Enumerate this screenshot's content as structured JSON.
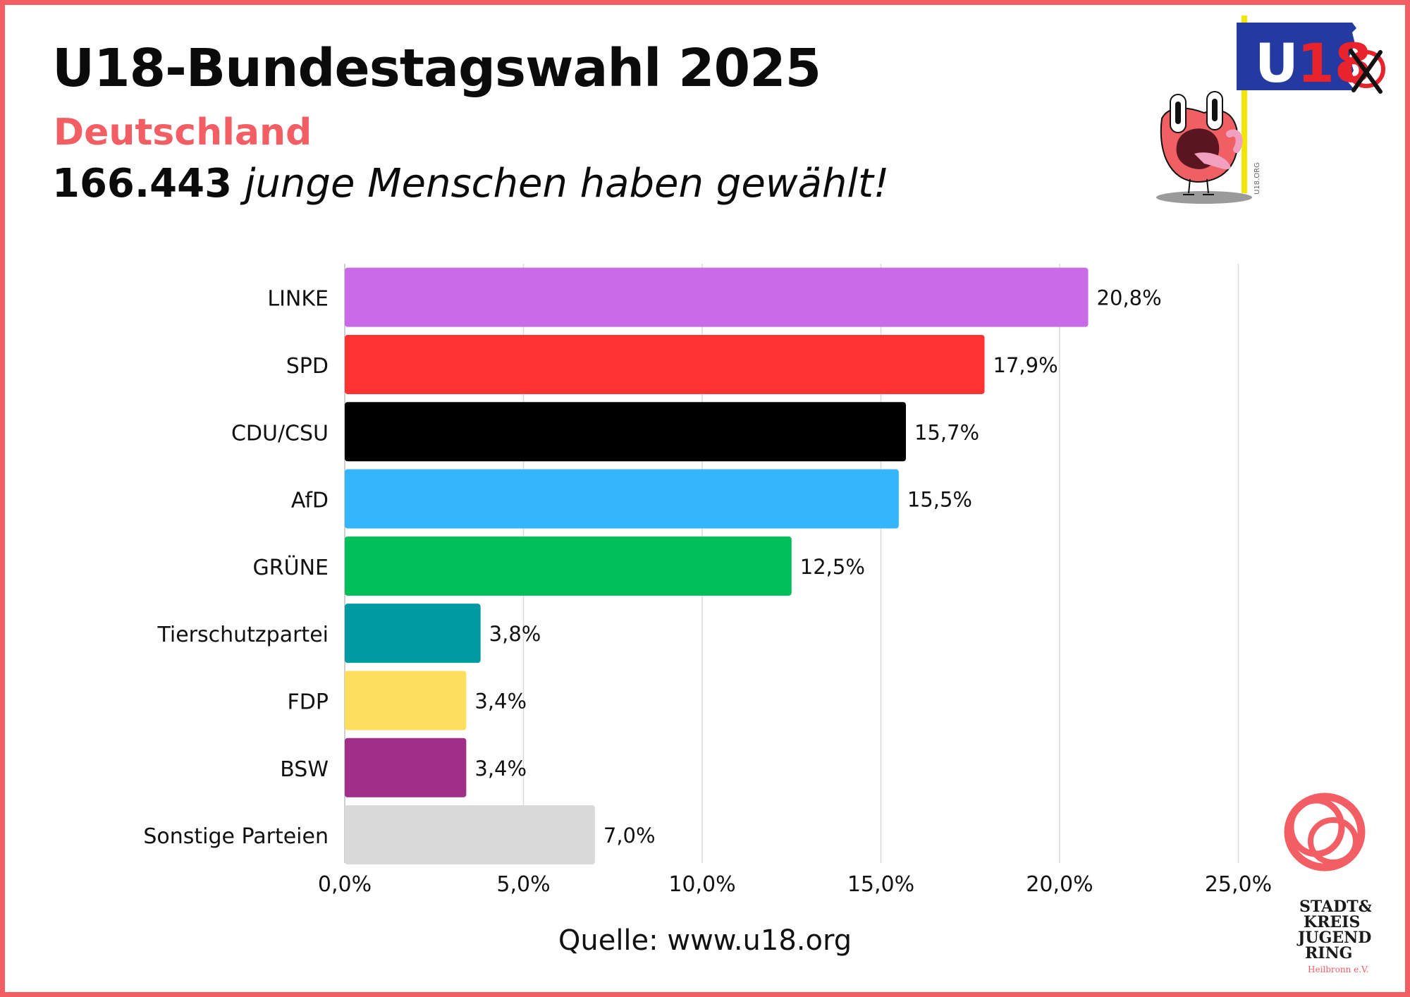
{
  "header": {
    "title": "U18-Bundestagswahl 2025",
    "subtitle": "Deutschland",
    "voters_count": "166.443",
    "voters_text": "junge Menschen haben gewählt!"
  },
  "footer": {
    "source": "Quelle: www.u18.org"
  },
  "logos": {
    "u18_flag_text": "U18",
    "u18_url": "U18.ORG",
    "org_lines": [
      "STADT&",
      "KREIS",
      "JUGEND",
      "RING",
      "Heilbronn e.V."
    ]
  },
  "colors": {
    "frame": "#f25e63",
    "accent": "#f25e63",
    "grid": "#d9d9d9",
    "text": "#111111"
  },
  "chart_data": {
    "type": "bar",
    "orientation": "horizontal",
    "categories": [
      "LINKE",
      "SPD",
      "CDU/CSU",
      "AfD",
      "GRÜNE",
      "Tierschutzpartei",
      "FDP",
      "BSW",
      "Sonstige Parteien"
    ],
    "values": [
      20.8,
      17.9,
      15.7,
      15.5,
      12.5,
      3.8,
      3.4,
      3.4,
      7.0
    ],
    "value_labels": [
      "20,8%",
      "17,9%",
      "15,7%",
      "15,5%",
      "12,5%",
      "3,8%",
      "3,4%",
      "3,4%",
      "7,0%"
    ],
    "bar_colors": [
      "#c96be6",
      "#ff3333",
      "#000000",
      "#35b6fc",
      "#00be5a",
      "#009aa3",
      "#fede5e",
      "#a02f87",
      "#d9d9d9"
    ],
    "xlim": [
      0,
      25
    ],
    "xticks": [
      0,
      5,
      10,
      15,
      20,
      25
    ],
    "xtick_labels": [
      "0,0%",
      "5,0%",
      "10,0%",
      "15,0%",
      "20,0%",
      "25,0%"
    ],
    "grid": true,
    "xlabel": "",
    "ylabel": "",
    "legend": false
  }
}
